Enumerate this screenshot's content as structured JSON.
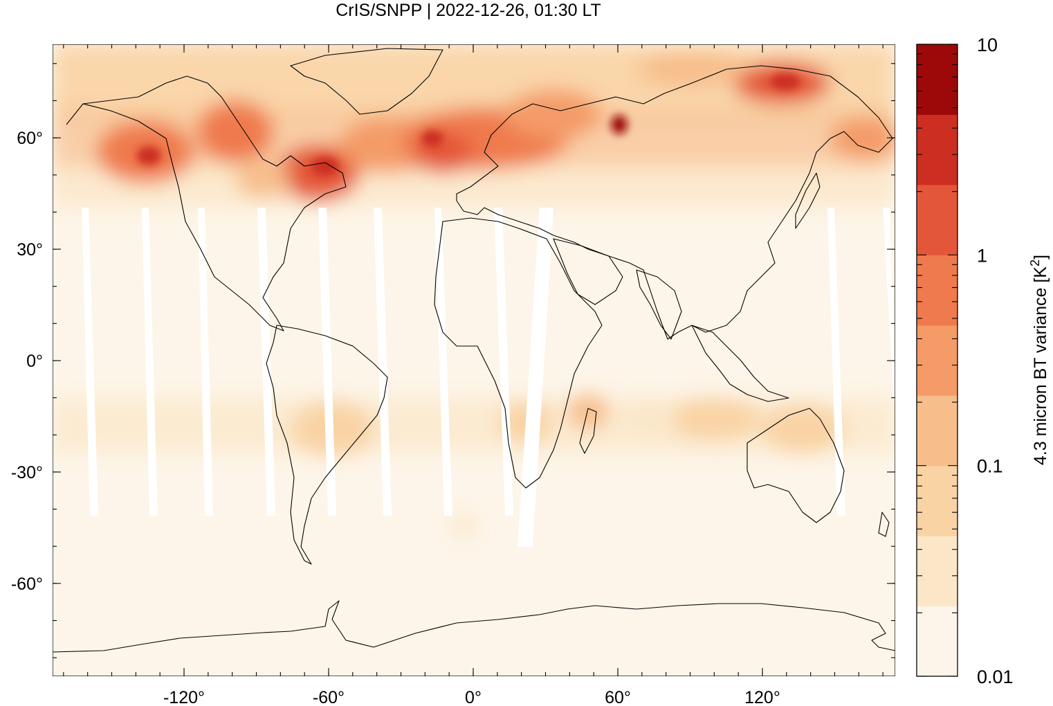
{
  "title": "CrIS/SNPP | 2022-12-26, 01:30 LT",
  "colors": {
    "background": "#fdf5e9",
    "levels": [
      "#fdf5e9",
      "#fbe7c8",
      "#f9d3a4",
      "#f7be8b",
      "#f49b67",
      "#ef7a4e",
      "#e45639",
      "#cc2f22",
      "#9d0908"
    ]
  },
  "map": {
    "x_ticks": [
      {
        "value": -120,
        "label": "-120°"
      },
      {
        "value": -60,
        "label": "-60°"
      },
      {
        "value": 0,
        "label": "0°"
      },
      {
        "value": 60,
        "label": "60°"
      },
      {
        "value": 120,
        "label": "120°"
      }
    ],
    "y_ticks": [
      {
        "value": 60,
        "label": "60°"
      },
      {
        "value": 30,
        "label": "30°"
      },
      {
        "value": 0,
        "label": "0°"
      },
      {
        "value": -30,
        "label": "-30°"
      },
      {
        "value": -60,
        "label": "-60°"
      }
    ]
  },
  "colorbar": {
    "label_main": "4.3 micron BT variance [K",
    "label_sup": "2",
    "label_end": "]",
    "ticks": [
      {
        "value": 10,
        "label": "10"
      },
      {
        "value": 1,
        "label": "1"
      },
      {
        "value": 0.1,
        "label": "0.1"
      },
      {
        "value": 0.01,
        "label": "0.01"
      }
    ]
  }
}
